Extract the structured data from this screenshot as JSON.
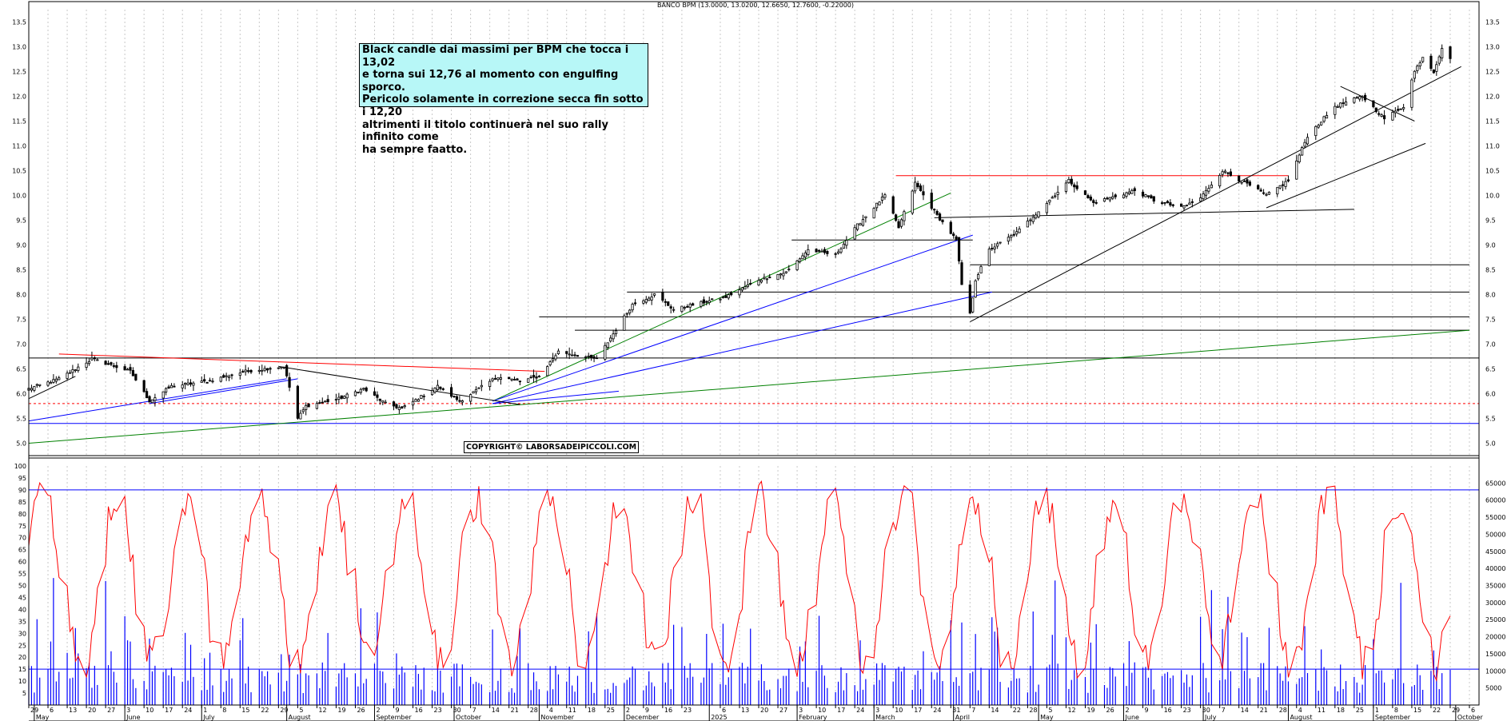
{
  "chart_data": [
    {
      "type": "candlestick",
      "title": "BANCO BPM (13.0000, 13.0200, 12.6650, 12.7600, -0.22000)",
      "ylim": [
        4.75,
        13.75
      ],
      "y_ticks": [
        "5.0",
        "5.5",
        "6.0",
        "6.5",
        "7.0",
        "7.5",
        "8.0",
        "8.5",
        "9.0",
        "9.5",
        "10.0",
        "10.5",
        "11.0",
        "11.5",
        "12.0",
        "12.5",
        "13.0",
        "13.5"
      ],
      "grid": "vertical dashed, weekly",
      "x_range": [
        "2024-04-29",
        "2025-10-06"
      ],
      "close_anchors": [
        [
          "2024-04-29",
          6.1
        ],
        [
          "2024-05-10",
          6.3
        ],
        [
          "2024-05-22",
          6.7
        ],
        [
          "2024-06-05",
          6.45
        ],
        [
          "2024-06-12",
          5.85
        ],
        [
          "2024-06-20",
          6.15
        ],
        [
          "2024-07-03",
          6.25
        ],
        [
          "2024-07-17",
          6.45
        ],
        [
          "2024-07-31",
          6.55
        ],
        [
          "2024-08-05",
          5.5
        ],
        [
          "2024-08-08",
          5.75
        ],
        [
          "2024-08-20",
          5.9
        ],
        [
          "2024-08-29",
          6.1
        ],
        [
          "2024-09-06",
          5.8
        ],
        [
          "2024-09-12",
          5.7
        ],
        [
          "2024-09-25",
          6.15
        ],
        [
          "2024-10-03",
          5.85
        ],
        [
          "2024-10-17",
          6.35
        ],
        [
          "2024-10-25",
          6.25
        ],
        [
          "2024-11-01",
          6.35
        ],
        [
          "2024-11-08",
          6.85
        ],
        [
          "2024-11-22",
          6.7
        ],
        [
          "2024-12-05",
          7.8
        ],
        [
          "2024-12-13",
          8.0
        ],
        [
          "2024-12-20",
          7.7
        ],
        [
          "2025-01-08",
          7.95
        ],
        [
          "2025-01-20",
          8.3
        ],
        [
          "2025-01-30",
          8.45
        ],
        [
          "2025-02-07",
          8.9
        ],
        [
          "2025-02-17",
          8.8
        ],
        [
          "2025-02-25",
          9.4
        ],
        [
          "2025-03-07",
          10.0
        ],
        [
          "2025-03-12",
          9.35
        ],
        [
          "2025-03-18",
          10.25
        ],
        [
          "2025-03-26",
          9.6
        ],
        [
          "2025-04-02",
          9.1
        ],
        [
          "2025-04-04",
          8.2
        ],
        [
          "2025-04-07",
          7.6
        ],
        [
          "2025-04-09",
          8.3
        ],
        [
          "2025-04-14",
          8.9
        ],
        [
          "2025-04-24",
          9.25
        ],
        [
          "2025-05-05",
          9.85
        ],
        [
          "2025-05-13",
          10.3
        ],
        [
          "2025-05-22",
          9.85
        ],
        [
          "2025-06-06",
          10.1
        ],
        [
          "2025-06-13",
          9.9
        ],
        [
          "2025-06-23",
          9.75
        ],
        [
          "2025-06-30",
          9.95
        ],
        [
          "2025-07-08",
          10.5
        ],
        [
          "2025-07-18",
          10.2
        ],
        [
          "2025-07-24",
          10.0
        ],
        [
          "2025-08-01",
          10.3
        ],
        [
          "2025-08-08",
          11.2
        ],
        [
          "2025-08-18",
          11.8
        ],
        [
          "2025-08-28",
          12.0
        ],
        [
          "2025-09-05",
          11.55
        ],
        [
          "2025-09-12",
          11.8
        ],
        [
          "2025-09-16",
          12.5
        ],
        [
          "2025-09-19",
          12.8
        ],
        [
          "2025-09-23",
          12.5
        ],
        [
          "2025-09-26",
          12.98
        ],
        [
          "2025-09-29",
          12.76
        ]
      ]
    },
    {
      "type": "line+bar",
      "oscillator_ylim": [
        0,
        100
      ],
      "oscillator_ticks": [
        "5",
        "10",
        "15",
        "20",
        "25",
        "30",
        "35",
        "40",
        "45",
        "50",
        "55",
        "60",
        "65",
        "70",
        "75",
        "80",
        "85",
        "90",
        "95",
        "100"
      ],
      "volume_ylim": [
        0,
        70000
      ],
      "volume_ticks": [
        "5000",
        "10000",
        "15000",
        "20000",
        "25000",
        "30000",
        "35000",
        "40000",
        "45000",
        "50000",
        "55000",
        "60000",
        "65000"
      ],
      "reference_levels": [
        90,
        15
      ]
    }
  ],
  "x_axis": {
    "day_ticks": [
      [
        "2024-04-29",
        "29"
      ],
      [
        "2024-05-06",
        "6"
      ],
      [
        "2024-05-13",
        "13"
      ],
      [
        "2024-05-20",
        "20"
      ],
      [
        "2024-05-27",
        "27"
      ],
      [
        "2024-06-03",
        "3"
      ],
      [
        "2024-06-10",
        "10"
      ],
      [
        "2024-06-17",
        "17"
      ],
      [
        "2024-06-24",
        "24"
      ],
      [
        "2024-07-01",
        "1"
      ],
      [
        "2024-07-08",
        "8"
      ],
      [
        "2024-07-15",
        "15"
      ],
      [
        "2024-07-22",
        "22"
      ],
      [
        "2024-07-29",
        "29"
      ],
      [
        "2024-08-05",
        "5"
      ],
      [
        "2024-08-12",
        "12"
      ],
      [
        "2024-08-19",
        "19"
      ],
      [
        "2024-08-26",
        "26"
      ],
      [
        "2024-09-02",
        "2"
      ],
      [
        "2024-09-09",
        "9"
      ],
      [
        "2024-09-16",
        "16"
      ],
      [
        "2024-09-23",
        "23"
      ],
      [
        "2024-09-30",
        "30"
      ],
      [
        "2024-10-07",
        "7"
      ],
      [
        "2024-10-14",
        "14"
      ],
      [
        "2024-10-21",
        "21"
      ],
      [
        "2024-10-28",
        "28"
      ],
      [
        "2024-11-04",
        "4"
      ],
      [
        "2024-11-11",
        "11"
      ],
      [
        "2024-11-18",
        "18"
      ],
      [
        "2024-11-25",
        "25"
      ],
      [
        "2024-12-02",
        "2"
      ],
      [
        "2024-12-09",
        "9"
      ],
      [
        "2024-12-16",
        "16"
      ],
      [
        "2024-12-23",
        "23"
      ],
      [
        "2025-01-06",
        "6"
      ],
      [
        "2025-01-13",
        "13"
      ],
      [
        "2025-01-20",
        "20"
      ],
      [
        "2025-01-27",
        "27"
      ],
      [
        "2025-02-03",
        "3"
      ],
      [
        "2025-02-10",
        "10"
      ],
      [
        "2025-02-17",
        "17"
      ],
      [
        "2025-02-24",
        "24"
      ],
      [
        "2025-03-03",
        "3"
      ],
      [
        "2025-03-10",
        "10"
      ],
      [
        "2025-03-17",
        "17"
      ],
      [
        "2025-03-24",
        "24"
      ],
      [
        "2025-03-31",
        "31"
      ],
      [
        "2025-04-07",
        "7"
      ],
      [
        "2025-04-14",
        "14"
      ],
      [
        "2025-04-22",
        "22"
      ],
      [
        "2025-04-28",
        "28"
      ],
      [
        "2025-05-05",
        "5"
      ],
      [
        "2025-05-12",
        "12"
      ],
      [
        "2025-05-19",
        "19"
      ],
      [
        "2025-05-26",
        "26"
      ],
      [
        "2025-06-02",
        "2"
      ],
      [
        "2025-06-09",
        "9"
      ],
      [
        "2025-06-16",
        "16"
      ],
      [
        "2025-06-23",
        "23"
      ],
      [
        "2025-06-30",
        "30"
      ],
      [
        "2025-07-07",
        "7"
      ],
      [
        "2025-07-14",
        "14"
      ],
      [
        "2025-07-21",
        "21"
      ],
      [
        "2025-07-28",
        "28"
      ],
      [
        "2025-08-04",
        "4"
      ],
      [
        "2025-08-11",
        "11"
      ],
      [
        "2025-08-18",
        "18"
      ],
      [
        "2025-08-25",
        "25"
      ],
      [
        "2025-09-01",
        "1"
      ],
      [
        "2025-09-08",
        "8"
      ],
      [
        "2025-09-15",
        "15"
      ],
      [
        "2025-09-22",
        "22"
      ],
      [
        "2025-09-29",
        "29"
      ],
      [
        "2025-10-06",
        "6"
      ]
    ],
    "month_labels": [
      [
        "2024-05-01",
        "May"
      ],
      [
        "2024-06-03",
        "June"
      ],
      [
        "2024-07-01",
        "July"
      ],
      [
        "2024-08-01",
        "August"
      ],
      [
        "2024-09-02",
        "September"
      ],
      [
        "2024-10-01",
        "October"
      ],
      [
        "2024-11-01",
        "November"
      ],
      [
        "2024-12-02",
        "December"
      ],
      [
        "2025-01-02",
        "2025"
      ],
      [
        "2025-02-03",
        "February"
      ],
      [
        "2025-03-03",
        "March"
      ],
      [
        "2025-04-01",
        "April"
      ],
      [
        "2025-05-02",
        "May"
      ],
      [
        "2025-06-02",
        "June"
      ],
      [
        "2025-07-01",
        "July"
      ],
      [
        "2025-08-01",
        "August"
      ],
      [
        "2025-09-01",
        "September"
      ],
      [
        "2025-10-01",
        "October"
      ]
    ]
  },
  "drawings": {
    "horizontal": [
      {
        "y": 5.4,
        "color": "#0000ff"
      },
      {
        "y": 5.8,
        "color": "#ff0000",
        "dashed": true
      },
      {
        "y": 6.72,
        "color": "#000000"
      }
    ],
    "segments": [
      {
        "from": [
          "2024-11-01",
          7.55
        ],
        "to": [
          "2025-10-06",
          7.55
        ],
        "color": "#000000"
      },
      {
        "from": [
          "2024-11-14",
          7.28
        ],
        "to": [
          "2025-10-06",
          7.28
        ],
        "color": "#000000"
      },
      {
        "from": [
          "2024-12-03",
          8.05
        ],
        "to": [
          "2025-10-06",
          8.05
        ],
        "color": "#000000"
      },
      {
        "from": [
          "2025-04-07",
          8.6
        ],
        "to": [
          "2025-10-06",
          8.6
        ],
        "color": "#000000"
      },
      {
        "from": [
          "2025-02-01",
          9.1
        ],
        "to": [
          "2025-04-08",
          9.1
        ],
        "color": "#000000"
      },
      {
        "from": [
          "2025-03-25",
          9.55
        ],
        "to": [
          "2025-08-25",
          9.72
        ],
        "color": "#000000"
      },
      {
        "from": [
          "2025-03-11",
          10.4
        ],
        "to": [
          "2025-08-01",
          10.4
        ],
        "color": "#ff0000"
      },
      {
        "from": [
          "2024-05-10",
          6.8
        ],
        "to": [
          "2024-11-03",
          6.45
        ],
        "color": "#ff0000"
      },
      {
        "from": [
          "2024-04-29",
          5.0
        ],
        "to": [
          "2025-10-06",
          7.28
        ],
        "color": "#008000"
      },
      {
        "from": [
          "2024-10-15",
          5.85
        ],
        "to": [
          "2025-03-31",
          10.05
        ],
        "color": "#008000"
      },
      {
        "from": [
          "2024-04-29",
          5.45
        ],
        "to": [
          "2024-08-01",
          6.3
        ],
        "color": "#0000ff"
      },
      {
        "from": [
          "2024-06-12",
          5.8
        ],
        "to": [
          "2024-08-05",
          6.3
        ],
        "color": "#0000ff"
      },
      {
        "from": [
          "2024-10-15",
          5.85
        ],
        "to": [
          "2025-04-08",
          9.2
        ],
        "color": "#0000ff"
      },
      {
        "from": [
          "2024-10-15",
          5.8
        ],
        "to": [
          "2025-04-15",
          8.05
        ],
        "color": "#0000ff"
      },
      {
        "from": [
          "2024-10-15",
          5.8
        ],
        "to": [
          "2024-11-30",
          6.05
        ],
        "color": "#0000ff"
      },
      {
        "from": [
          "2024-04-29",
          5.9
        ],
        "to": [
          "2024-05-16",
          6.35
        ],
        "color": "#000000"
      },
      {
        "from": [
          "2024-07-29",
          6.55
        ],
        "to": [
          "2024-10-25",
          5.78
        ],
        "color": "#000000"
      },
      {
        "from": [
          "2025-04-07",
          7.45
        ],
        "to": [
          "2025-10-03",
          12.6
        ],
        "color": "#000000"
      },
      {
        "from": [
          "2025-07-24",
          9.75
        ],
        "to": [
          "2025-09-20",
          11.05
        ],
        "color": "#000000"
      },
      {
        "from": [
          "2025-08-20",
          12.2
        ],
        "to": [
          "2025-09-16",
          11.5
        ],
        "color": "#000000"
      }
    ]
  },
  "annotation": {
    "text": "Black candle dai massimi per BPM che tocca i 13,02\ne torna sui 12,76 al momento con engulfing sporco.\nPericolo solamente in correzione secca fin sotto i 12,20\naltrimenti il titolo continuerà nel suo rally infinito come\nha sempre faatto."
  },
  "copyright": "COPYRIGHT© LABORSADEIPICCOLI.COM",
  "colors": {
    "candle_up": "#ffffff",
    "candle_down": "#000000",
    "oscillator": "#ff0000",
    "volume": "#0000ff",
    "grid": "#c8c8c8",
    "annotation_bg": "#b7f7f7"
  }
}
